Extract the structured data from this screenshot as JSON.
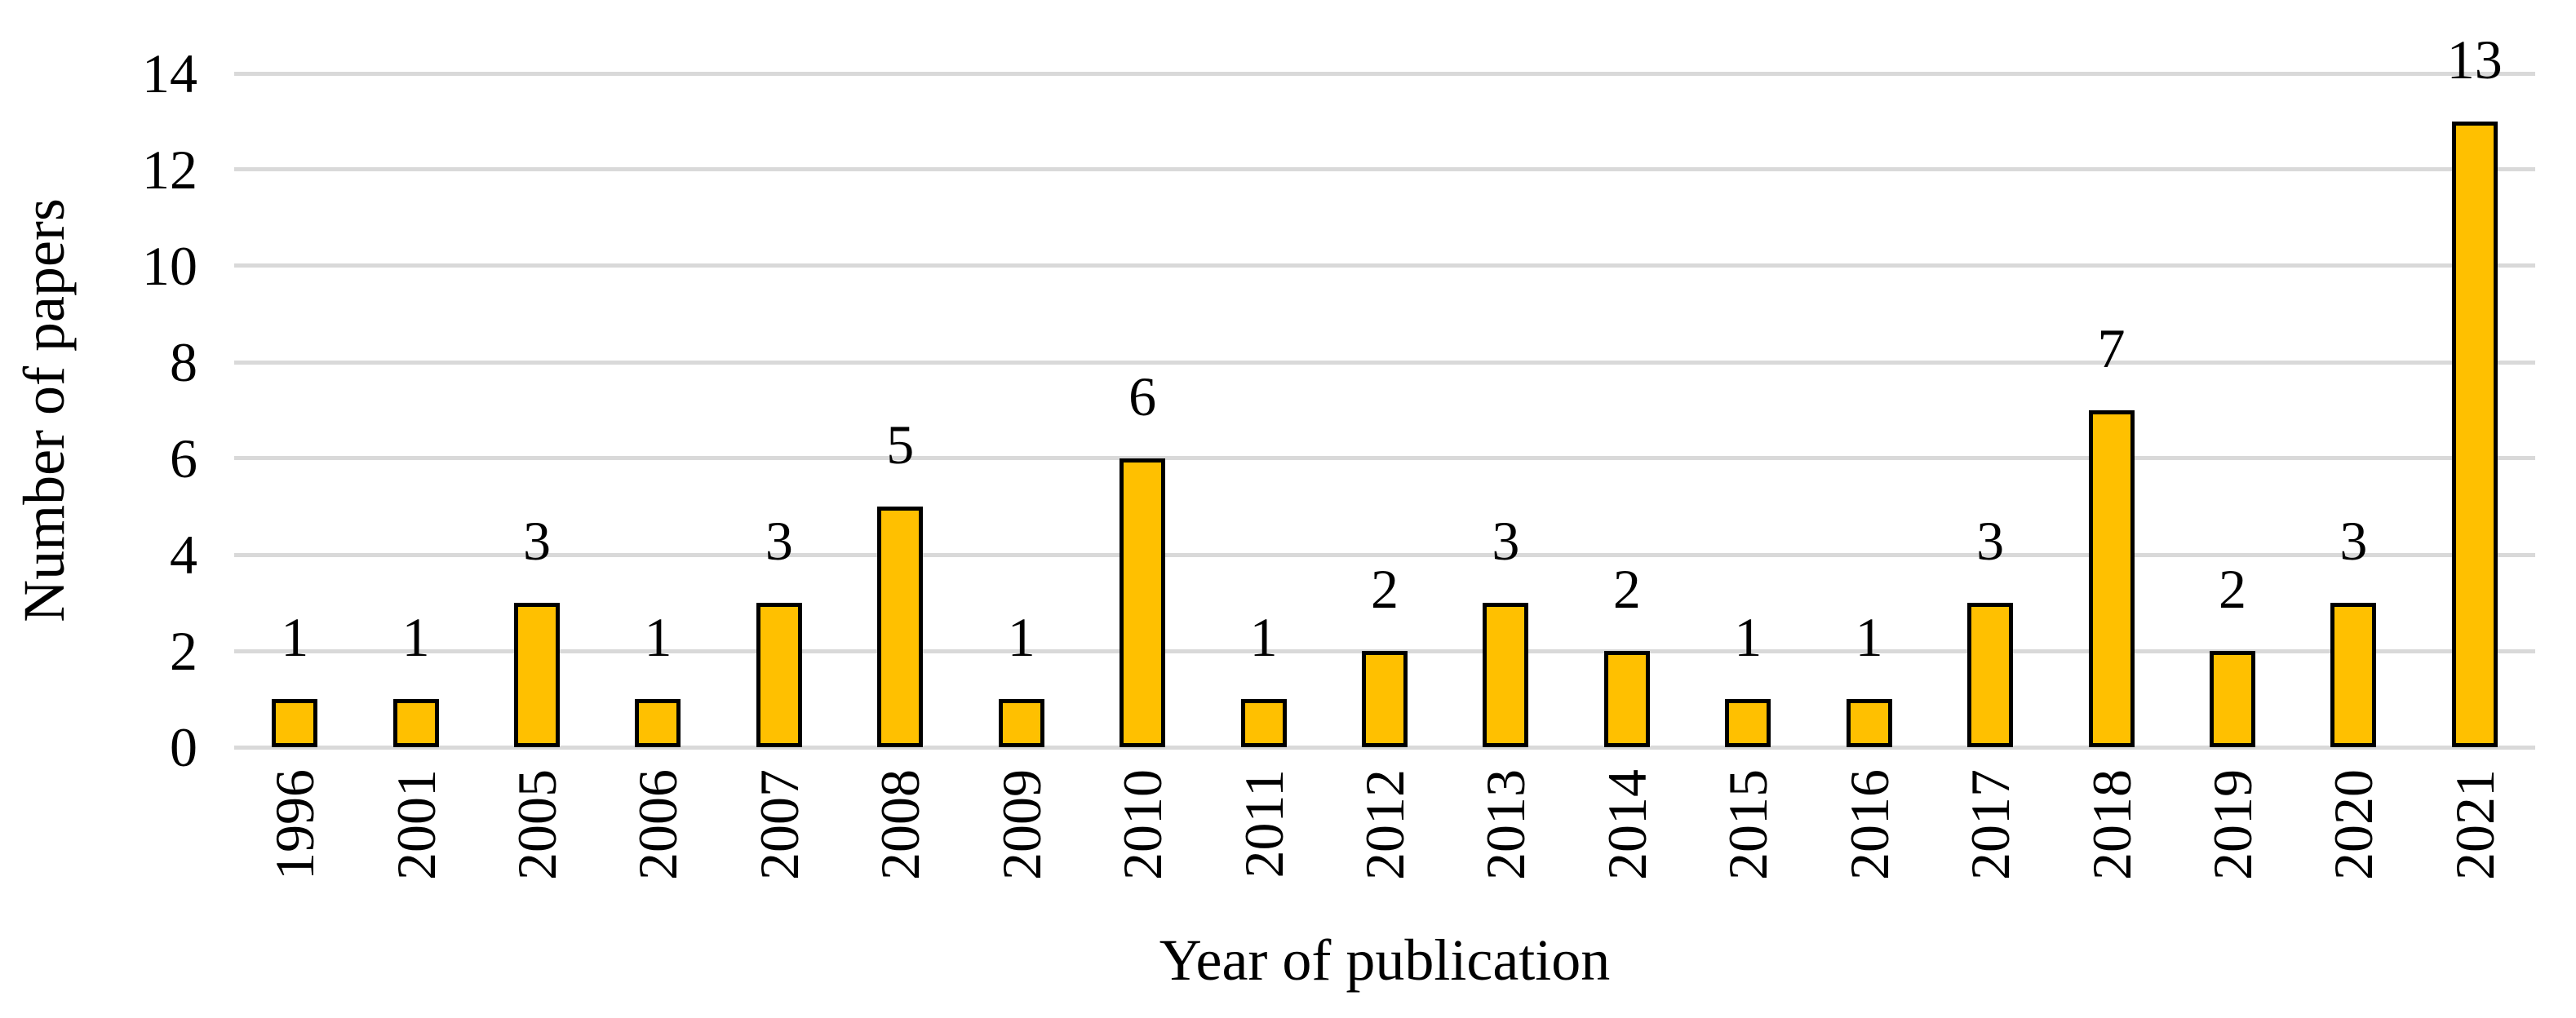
{
  "chart_data": {
    "type": "bar",
    "categories": [
      "1996",
      "2001",
      "2005",
      "2006",
      "2007",
      "2008",
      "2009",
      "2010",
      "2011",
      "2012",
      "2013",
      "2014",
      "2015",
      "2016",
      "2017",
      "2018",
      "2019",
      "2020",
      "2021"
    ],
    "values": [
      1,
      1,
      3,
      1,
      3,
      5,
      1,
      6,
      1,
      2,
      3,
      2,
      1,
      1,
      3,
      7,
      2,
      3,
      13
    ],
    "title": "",
    "xlabel": "Year of publication",
    "ylabel": "Number of papers",
    "ylim": [
      0,
      14
    ],
    "yticks": [
      0,
      2,
      4,
      6,
      8,
      10,
      12,
      14
    ],
    "grid": true,
    "legend": "none",
    "data_labels": true,
    "colors": {
      "bar_fill": "#FFC000",
      "bar_border": "#000000",
      "gridline": "#D9D9D9",
      "text": "#000000",
      "background": "#FFFFFF"
    }
  }
}
